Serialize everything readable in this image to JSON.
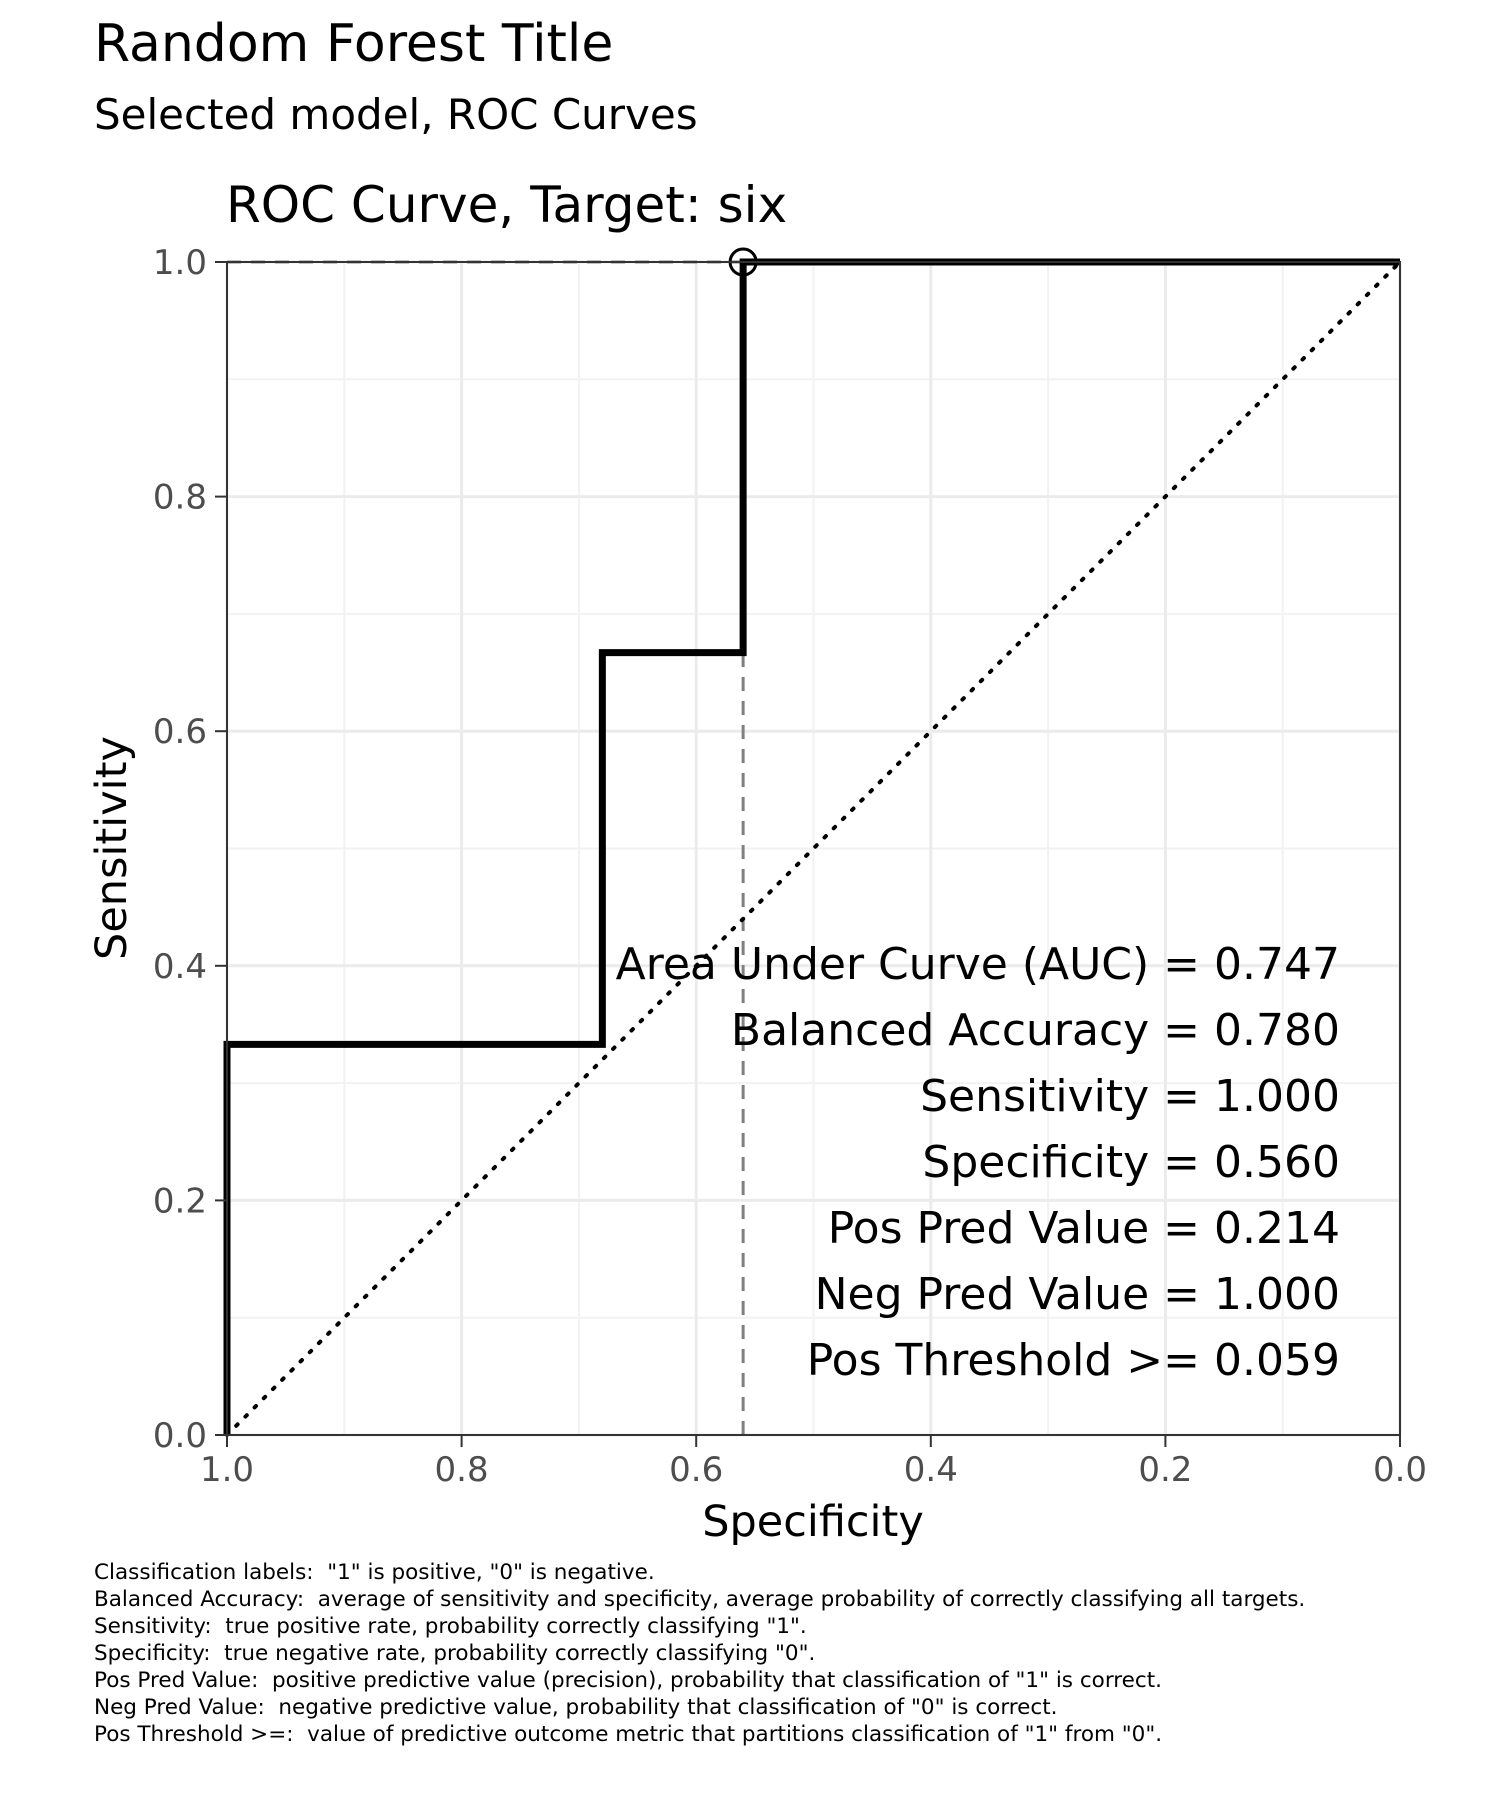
{
  "header": {
    "title": "Random Forest Title",
    "subtitle": "Selected model, ROC Curves"
  },
  "chart_data": {
    "type": "line",
    "title": "ROC Curve, Target:  six",
    "xlabel": "Specificity",
    "ylabel": "Sensitivity",
    "xlim": [
      1.0,
      0.0
    ],
    "ylim": [
      0.0,
      1.0
    ],
    "x_reversed": true,
    "grid": true,
    "xticks": [
      1.0,
      0.8,
      0.6,
      0.4,
      0.2,
      0.0
    ],
    "xtick_labels": [
      "1.0",
      "0.8",
      "0.6",
      "0.4",
      "0.2",
      "0.0"
    ],
    "yticks": [
      0.0,
      0.2,
      0.4,
      0.6,
      0.8,
      1.0
    ],
    "ytick_labels": [
      "0.0",
      "0.2",
      "0.4",
      "0.6",
      "0.8",
      "1.0"
    ],
    "series": [
      {
        "style": "solid-black",
        "points": [
          {
            "specificity": 1.0,
            "sensitivity": 0.0
          },
          {
            "specificity": 1.0,
            "sensitivity": 0.333
          },
          {
            "specificity": 0.68,
            "sensitivity": 0.333
          },
          {
            "specificity": 0.68,
            "sensitivity": 0.667
          },
          {
            "specificity": 0.56,
            "sensitivity": 0.667
          },
          {
            "specificity": 0.56,
            "sensitivity": 1.0
          },
          {
            "specificity": 0.0,
            "sensitivity": 1.0
          }
        ]
      }
    ],
    "reference_line": {
      "style": "dotted",
      "from": {
        "specificity": 1.0,
        "sensitivity": 0.0
      },
      "to": {
        "specificity": 0.0,
        "sensitivity": 1.0
      }
    },
    "threshold_point": {
      "specificity": 0.56,
      "sensitivity": 1.0
    },
    "annotations": [
      "Area Under Curve (AUC) = 0.747",
      "Balanced Accuracy = 0.780",
      "Sensitivity = 1.000",
      "Specificity = 0.560",
      "Pos Pred Value = 0.214",
      "Neg Pred Value = 1.000",
      "Pos Threshold >= 0.059"
    ]
  },
  "caption": {
    "lines": [
      "Classification labels:  \"1\" is positive, \"0\" is negative.",
      "Balanced Accuracy:  average of sensitivity and specificity, average probability of correctly classifying all targets.",
      "Sensitivity:  true positive rate, probability correctly classifying \"1\".",
      "Specificity:  true negative rate, probability correctly classifying \"0\".",
      "Pos Pred Value:  positive predictive value (precision), probability that classification of \"1\" is correct.",
      "Neg Pred Value:  negative predictive value, probability that classification of \"0\" is correct.",
      "Pos Threshold >=:  value of predictive outcome metric that partitions classification of \"1\" from \"0\"."
    ]
  }
}
